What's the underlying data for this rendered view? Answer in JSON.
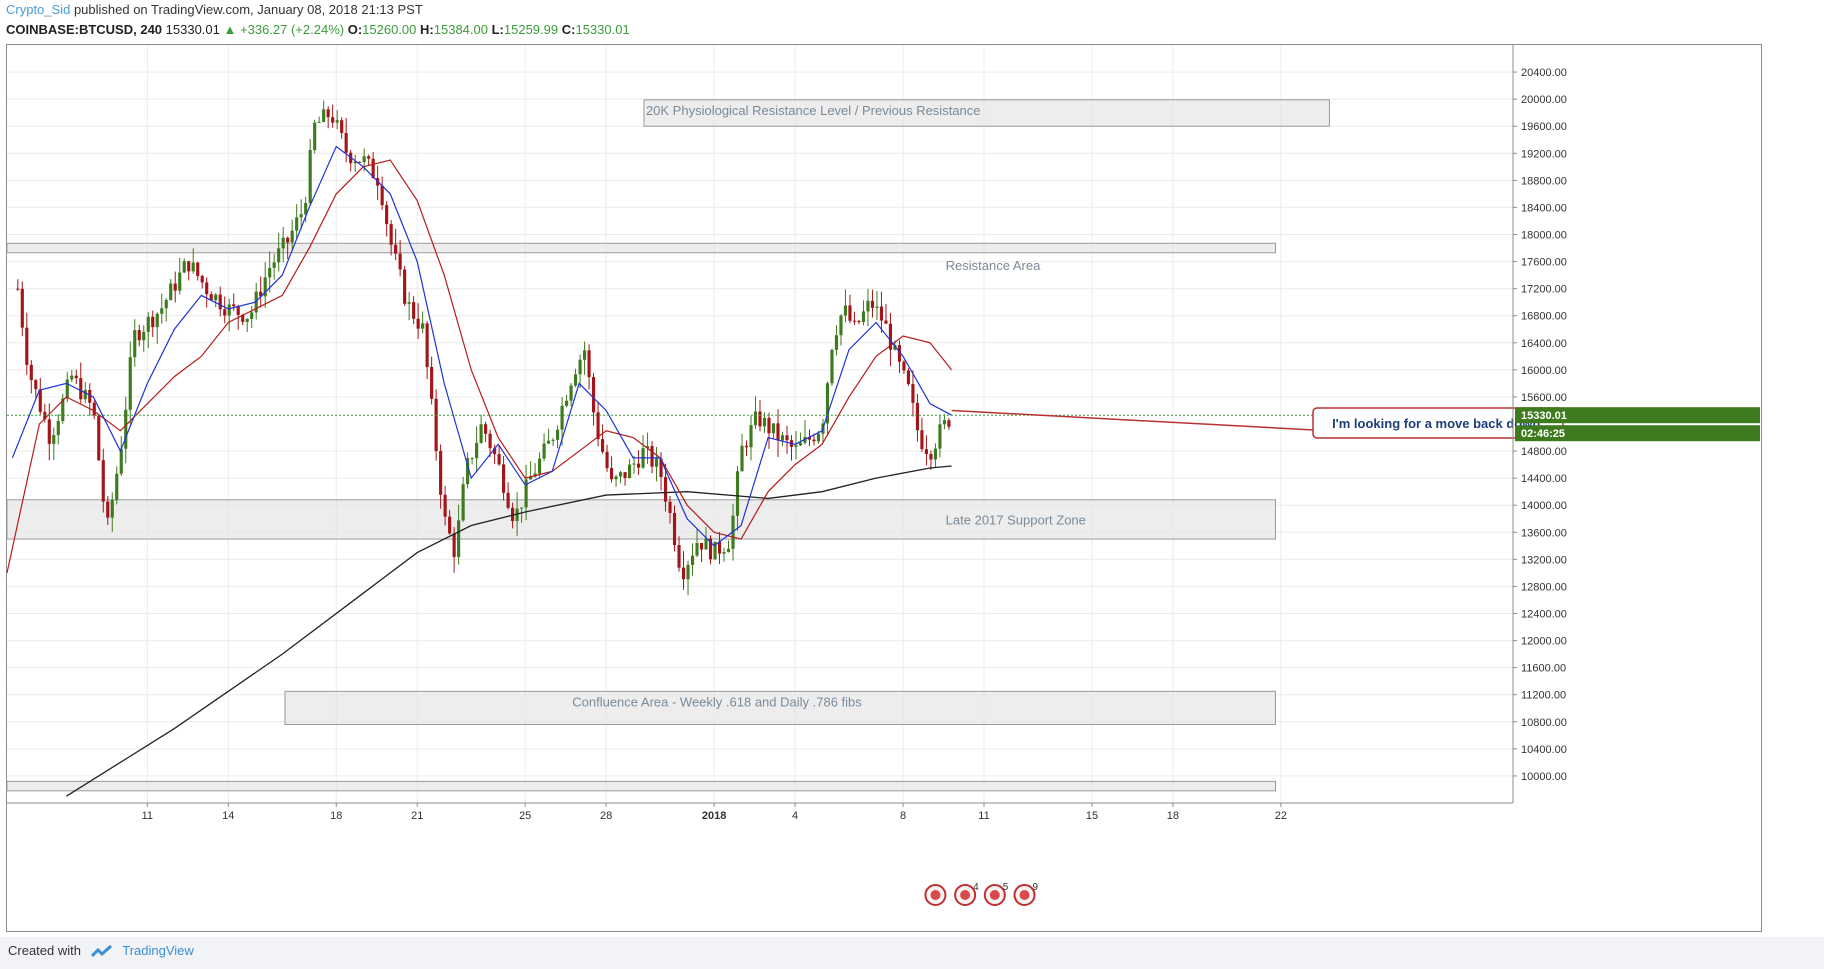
{
  "header": {
    "author": "Crypto_Sid",
    "published_text": "published on TradingView.com, January 08, 2018 21:13 PST"
  },
  "symbol_bar": {
    "symbol": "COINBASE:BTCUSD, 240",
    "last": "15330.01",
    "change": "+336.27 (+2.24%)",
    "o_label": "O:",
    "o_value": "15260.00",
    "h_label": "H:",
    "h_value": "15384.00",
    "l_label": "L:",
    "l_value": "15259.99",
    "c_label": "C:",
    "c_value": "15330.01"
  },
  "footer": {
    "created_with": "Created with",
    "brand": "TradingView"
  },
  "price_tag": {
    "price": "15330.01",
    "countdown": "02:46:25"
  },
  "colors": {
    "up": "#3e7a1e",
    "down": "#a31518",
    "ema_fast": "#1f33d6",
    "ema_slow": "#b81b1b",
    "ma_long": "#222222",
    "zone_fill": "#e6e6e6",
    "zone_stroke": "#9a9a9a",
    "callout_border": "#b93232"
  },
  "chart_data": {
    "type": "candlestick",
    "x_ticks": [
      "11",
      "14",
      "18",
      "21",
      "25",
      "28",
      "2018",
      "4",
      "8",
      "11",
      "15",
      "18",
      "22"
    ],
    "x_tick_days": [
      -21,
      -18,
      -14,
      -11,
      -7,
      -4,
      0,
      3,
      7,
      10,
      14,
      17,
      21
    ],
    "x_range_days": [
      -26.2,
      29.6
    ],
    "y_ticks": [
      "10000.00",
      "10400.00",
      "10800.00",
      "11200.00",
      "11600.00",
      "12000.00",
      "12400.00",
      "12800.00",
      "13200.00",
      "13600.00",
      "14000.00",
      "14400.00",
      "14800.00",
      "15600.00",
      "16000.00",
      "16400.00",
      "16800.00",
      "17200.00",
      "17600.00",
      "18000.00",
      "18400.00",
      "18800.00",
      "19200.00",
      "19600.00",
      "20000.00",
      "20400.00"
    ],
    "ylim": [
      9600,
      20800
    ],
    "last_price": 15330.01,
    "zones": [
      {
        "label": "20K Physiological Resistance Level / Previous Resistance",
        "x0_day": -2.6,
        "x1_day": 22.8,
        "y_top": 19990,
        "y_bot": 19600
      },
      {
        "label": "Resistance Area",
        "x0_day": -26.2,
        "x1_day": 20.8,
        "y_top": 17870,
        "y_bot": 17730
      },
      {
        "label": "Late 2017 Support Zone",
        "x0_day": -26.2,
        "x1_day": 20.8,
        "y_top": 14080,
        "y_bot": 13500
      },
      {
        "label": "Confluence Area -  Weekly .618 and Daily .786 fibs",
        "x0_day": -15.9,
        "x1_day": 20.8,
        "y_top": 11250,
        "y_bot": 10760
      },
      {
        "label": "",
        "x0_day": -26.2,
        "x1_day": 20.8,
        "y_top": 9920,
        "y_bot": 9780
      }
    ],
    "callout": {
      "text": "I'm looking for a move back down.",
      "anchor_day": 8.8,
      "anchor_price": 15400
    },
    "event_badges": [
      "",
      "4",
      "5",
      "9"
    ],
    "event_days": [
      8.2,
      9.3,
      10.4,
      11.5
    ],
    "ohlc_keypoints": [
      {
        "day": -25.8,
        "price": 17200
      },
      {
        "day": -25.4,
        "price": 16000
      },
      {
        "day": -24.6,
        "price": 15000
      },
      {
        "day": -23.8,
        "price": 15900
      },
      {
        "day": -23.0,
        "price": 15400
      },
      {
        "day": -22.5,
        "price": 13600
      },
      {
        "day": -22.0,
        "price": 14800
      },
      {
        "day": -21.5,
        "price": 16500
      },
      {
        "day": -20.5,
        "price": 16900
      },
      {
        "day": -19.5,
        "price": 17600
      },
      {
        "day": -18.8,
        "price": 17200
      },
      {
        "day": -18.0,
        "price": 16900
      },
      {
        "day": -17.2,
        "price": 16800
      },
      {
        "day": -16.5,
        "price": 17500
      },
      {
        "day": -15.8,
        "price": 17900
      },
      {
        "day": -15.2,
        "price": 18400
      },
      {
        "day": -14.8,
        "price": 19600
      },
      {
        "day": -14.2,
        "price": 19800
      },
      {
        "day": -13.6,
        "price": 19200
      },
      {
        "day": -13.0,
        "price": 19100
      },
      {
        "day": -12.4,
        "price": 18800
      },
      {
        "day": -12.0,
        "price": 17900
      },
      {
        "day": -11.4,
        "price": 17000
      },
      {
        "day": -10.8,
        "price": 16600
      },
      {
        "day": -10.4,
        "price": 15200
      },
      {
        "day": -10.0,
        "price": 13800
      },
      {
        "day": -9.6,
        "price": 13300
      },
      {
        "day": -9.2,
        "price": 14500
      },
      {
        "day": -8.6,
        "price": 15200
      },
      {
        "day": -8.0,
        "price": 14600
      },
      {
        "day": -7.4,
        "price": 13800
      },
      {
        "day": -6.8,
        "price": 14400
      },
      {
        "day": -6.0,
        "price": 15000
      },
      {
        "day": -5.2,
        "price": 16000
      },
      {
        "day": -4.8,
        "price": 16300
      },
      {
        "day": -4.4,
        "price": 15200
      },
      {
        "day": -3.8,
        "price": 14300
      },
      {
        "day": -3.2,
        "price": 14500
      },
      {
        "day": -2.6,
        "price": 14800
      },
      {
        "day": -2.0,
        "price": 14500
      },
      {
        "day": -1.6,
        "price": 13800
      },
      {
        "day": -1.2,
        "price": 13000
      },
      {
        "day": -0.6,
        "price": 13500
      },
      {
        "day": 0.0,
        "price": 13300
      },
      {
        "day": 0.6,
        "price": 13500
      },
      {
        "day": 1.0,
        "price": 14800
      },
      {
        "day": 1.6,
        "price": 15300
      },
      {
        "day": 2.4,
        "price": 15000
      },
      {
        "day": 3.0,
        "price": 14800
      },
      {
        "day": 3.6,
        "price": 15000
      },
      {
        "day": 4.0,
        "price": 15200
      },
      {
        "day": 4.4,
        "price": 16500
      },
      {
        "day": 4.8,
        "price": 16900
      },
      {
        "day": 5.2,
        "price": 16600
      },
      {
        "day": 5.8,
        "price": 17000
      },
      {
        "day": 6.3,
        "price": 16700
      },
      {
        "day": 6.8,
        "price": 16100
      },
      {
        "day": 7.2,
        "price": 15700
      },
      {
        "day": 7.6,
        "price": 15000
      },
      {
        "day": 8.0,
        "price": 14800
      },
      {
        "day": 8.4,
        "price": 15100
      },
      {
        "day": 8.8,
        "price": 15330
      }
    ],
    "ema_fast_points": [
      {
        "day": -26.0,
        "price": 14700
      },
      {
        "day": -25.0,
        "price": 15700
      },
      {
        "day": -24.0,
        "price": 15800
      },
      {
        "day": -23.0,
        "price": 15600
      },
      {
        "day": -22.0,
        "price": 14800
      },
      {
        "day": -21.0,
        "price": 15800
      },
      {
        "day": -20.0,
        "price": 16600
      },
      {
        "day": -19.0,
        "price": 17100
      },
      {
        "day": -18.0,
        "price": 16900
      },
      {
        "day": -17.0,
        "price": 17000
      },
      {
        "day": -16.0,
        "price": 17400
      },
      {
        "day": -15.0,
        "price": 18400
      },
      {
        "day": -14.0,
        "price": 19300
      },
      {
        "day": -13.0,
        "price": 19000
      },
      {
        "day": -12.0,
        "price": 18600
      },
      {
        "day": -11.0,
        "price": 17600
      },
      {
        "day": -10.0,
        "price": 15800
      },
      {
        "day": -9.0,
        "price": 14400
      },
      {
        "day": -8.0,
        "price": 14900
      },
      {
        "day": -7.0,
        "price": 14300
      },
      {
        "day": -6.0,
        "price": 14500
      },
      {
        "day": -5.0,
        "price": 15800
      },
      {
        "day": -4.0,
        "price": 15400
      },
      {
        "day": -3.0,
        "price": 14700
      },
      {
        "day": -2.0,
        "price": 14700
      },
      {
        "day": -1.0,
        "price": 13800
      },
      {
        "day": 0.0,
        "price": 13400
      },
      {
        "day": 1.0,
        "price": 13700
      },
      {
        "day": 2.0,
        "price": 15000
      },
      {
        "day": 3.0,
        "price": 14900
      },
      {
        "day": 4.0,
        "price": 15100
      },
      {
        "day": 5.0,
        "price": 16300
      },
      {
        "day": 6.0,
        "price": 16700
      },
      {
        "day": 7.0,
        "price": 16200
      },
      {
        "day": 8.0,
        "price": 15500
      },
      {
        "day": 8.8,
        "price": 15330
      }
    ],
    "ema_slow_points": [
      {
        "day": -26.2,
        "price": 13000
      },
      {
        "day": -25.0,
        "price": 15200
      },
      {
        "day": -24.0,
        "price": 15600
      },
      {
        "day": -23.0,
        "price": 15400
      },
      {
        "day": -22.0,
        "price": 15100
      },
      {
        "day": -21.0,
        "price": 15500
      },
      {
        "day": -20.0,
        "price": 15900
      },
      {
        "day": -19.0,
        "price": 16200
      },
      {
        "day": -18.0,
        "price": 16700
      },
      {
        "day": -17.0,
        "price": 16900
      },
      {
        "day": -16.0,
        "price": 17100
      },
      {
        "day": -15.0,
        "price": 17800
      },
      {
        "day": -14.0,
        "price": 18600
      },
      {
        "day": -13.0,
        "price": 19000
      },
      {
        "day": -12.0,
        "price": 19100
      },
      {
        "day": -11.0,
        "price": 18500
      },
      {
        "day": -10.0,
        "price": 17400
      },
      {
        "day": -9.0,
        "price": 16000
      },
      {
        "day": -8.0,
        "price": 15000
      },
      {
        "day": -7.0,
        "price": 14400
      },
      {
        "day": -6.0,
        "price": 14500
      },
      {
        "day": -5.0,
        "price": 14800
      },
      {
        "day": -4.0,
        "price": 15100
      },
      {
        "day": -3.0,
        "price": 15000
      },
      {
        "day": -2.0,
        "price": 14700
      },
      {
        "day": -1.0,
        "price": 14000
      },
      {
        "day": 0.0,
        "price": 13600
      },
      {
        "day": 1.0,
        "price": 13500
      },
      {
        "day": 2.0,
        "price": 14200
      },
      {
        "day": 3.0,
        "price": 14600
      },
      {
        "day": 4.0,
        "price": 14900
      },
      {
        "day": 5.0,
        "price": 15600
      },
      {
        "day": 6.0,
        "price": 16200
      },
      {
        "day": 7.0,
        "price": 16500
      },
      {
        "day": 8.0,
        "price": 16400
      },
      {
        "day": 8.8,
        "price": 16000
      }
    ],
    "ma_long_points": [
      {
        "day": -24.0,
        "price": 9700
      },
      {
        "day": -20.0,
        "price": 10700
      },
      {
        "day": -16.0,
        "price": 11800
      },
      {
        "day": -13.0,
        "price": 12700
      },
      {
        "day": -11.0,
        "price": 13300
      },
      {
        "day": -9.0,
        "price": 13700
      },
      {
        "day": -7.0,
        "price": 13900
      },
      {
        "day": -4.0,
        "price": 14150
      },
      {
        "day": -1.0,
        "price": 14200
      },
      {
        "day": 2.0,
        "price": 14100
      },
      {
        "day": 4.0,
        "price": 14200
      },
      {
        "day": 6.0,
        "price": 14400
      },
      {
        "day": 8.0,
        "price": 14550
      },
      {
        "day": 8.8,
        "price": 14580
      }
    ]
  }
}
